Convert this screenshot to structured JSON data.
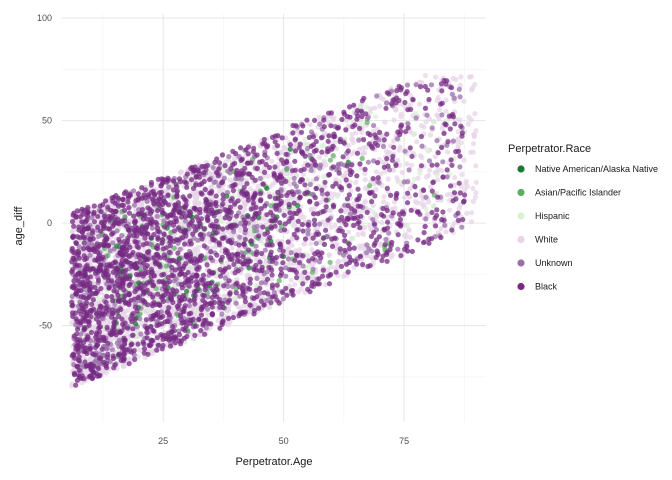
{
  "chart_data": {
    "type": "scatter",
    "xlabel": "Perpetrator.Age",
    "ylabel": "age_diff",
    "xlim": [
      4,
      92
    ],
    "ylim": [
      -97,
      102
    ],
    "x_ticks": [
      25,
      50,
      75
    ],
    "x_tick_labels": [
      "25",
      "50",
      "75"
    ],
    "y_ticks": [
      -50,
      0,
      50,
      100
    ],
    "y_tick_labels": [
      "-50",
      "0",
      "50",
      "100"
    ],
    "grid": true,
    "legend": {
      "title": "Perpetrator.Race",
      "position": "right",
      "entries": [
        {
          "label": "Native American/Alaska Native",
          "color": "#1b7837"
        },
        {
          "label": "Asian/Pacific Islander",
          "color": "#5aae61"
        },
        {
          "label": "Hispanic",
          "color": "#d9f0d3"
        },
        {
          "label": "White",
          "color": "#e7d4e8"
        },
        {
          "label": "Unknown",
          "color": "#9970ab"
        },
        {
          "label": "Black",
          "color": "#762a83"
        }
      ]
    },
    "series": [
      {
        "name": "White",
        "color": "#e7d4e8",
        "opacity": 0.75,
        "count": 2600,
        "region": {
          "x": [
            6,
            90
          ],
          "lower_at_x_min": -80,
          "lower_slope": 0.93,
          "upper_at_x_min": 4,
          "upper_slope": 0.93,
          "upper_cap": 72
        }
      },
      {
        "name": "Hispanic",
        "color": "#d9f0d3",
        "opacity": 0.7,
        "count": 200,
        "region": {
          "x": [
            8,
            88
          ],
          "lower_at_x_min": -70,
          "lower_slope": 0.93,
          "upper_at_x_min": 3,
          "upper_slope": 0.93,
          "upper_cap": 65
        }
      },
      {
        "name": "Unknown",
        "color": "#9970ab",
        "opacity": 0.75,
        "count": 650,
        "region": {
          "x": [
            6,
            88
          ],
          "lower_at_x_min": -78,
          "lower_slope": 0.93,
          "upper_at_x_min": 4,
          "upper_slope": 0.93,
          "upper_cap": 70
        }
      },
      {
        "name": "Asian/Pacific Islander",
        "color": "#5aae61",
        "opacity": 0.7,
        "count": 90,
        "region": {
          "x": [
            12,
            85
          ],
          "lower_at_x_min": -70,
          "lower_slope": 0.93,
          "upper_at_x_min": 2,
          "upper_slope": 0.93,
          "upper_cap": 60
        }
      },
      {
        "name": "Native American/Alaska Native",
        "color": "#1b7837",
        "opacity": 0.75,
        "count": 45,
        "region": {
          "x": [
            14,
            70
          ],
          "lower_at_x_min": -55,
          "lower_slope": 0.93,
          "upper_at_x_min": 2,
          "upper_slope": 0.93,
          "upper_cap": 55
        }
      },
      {
        "name": "Black",
        "color": "#762a83",
        "opacity": 0.75,
        "count": 1800,
        "region": {
          "x": [
            6,
            88
          ],
          "lower_at_x_min": -80,
          "lower_slope": 0.93,
          "upper_at_x_min": 5,
          "upper_slope": 0.93,
          "upper_cap": 70
        }
      }
    ]
  }
}
